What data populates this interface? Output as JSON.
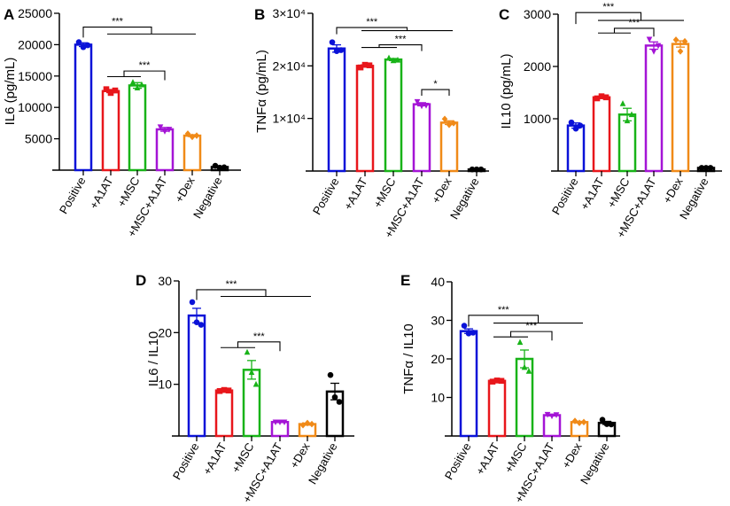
{
  "chart_data": [
    {
      "panel": "A",
      "type": "bar",
      "ylabel": "IL6 (pg/mL)",
      "ylim": [
        0,
        25000
      ],
      "yticks": [
        5000,
        10000,
        15000,
        20000,
        25000
      ],
      "ytick_labels": [
        "5000",
        "10000",
        "15000",
        "20000",
        "25000"
      ],
      "categories": [
        "Positive",
        "+A1AT",
        "+MSC",
        "+MSC+A1AT",
        "+Dex",
        "Negative"
      ],
      "values": [
        20000,
        12600,
        13500,
        6500,
        5500,
        500
      ],
      "sem": [
        300,
        250,
        450,
        300,
        150,
        80
      ],
      "points": [
        [
          20400,
          19600,
          19900
        ],
        [
          12900,
          12300,
          12700
        ],
        [
          14000,
          13100,
          13600
        ],
        [
          6900,
          6200,
          6500
        ],
        [
          5800,
          5300,
          5500
        ],
        [
          700,
          400,
          450
        ]
      ],
      "significance": [
        {
          "point": 0,
          "group": [
            1,
            4
          ],
          "y": 22800,
          "y2": 21700,
          "label": "***"
        },
        {
          "point": 3,
          "group": [
            1,
            2
          ],
          "y": 15800,
          "y2": 14900,
          "label": "***"
        }
      ]
    },
    {
      "panel": "B",
      "type": "bar",
      "ylabel": "TNFα (pg/mL)",
      "ylim": [
        0,
        30000
      ],
      "yticks": [
        10000,
        20000,
        30000
      ],
      "ytick_labels": [
        "1×10⁴",
        "2×10⁴",
        "3×10⁴"
      ],
      "categories": [
        "Positive",
        "+A1AT",
        "+MSC",
        "+MSC+A1AT",
        "+Dex",
        "Negative"
      ],
      "values": [
        23300,
        20000,
        21200,
        12700,
        9200,
        300
      ],
      "sem": [
        700,
        200,
        200,
        300,
        350,
        50
      ],
      "points": [
        [
          24500,
          22800,
          23000
        ],
        [
          19700,
          20200,
          20100
        ],
        [
          21500,
          21000,
          21100
        ],
        [
          13200,
          12400,
          12500
        ],
        [
          9900,
          8800,
          9100
        ],
        [
          300,
          300,
          300
        ]
      ],
      "significance": [
        {
          "point": 0,
          "group": [
            1,
            4
          ],
          "y": 27300,
          "y2": 26700,
          "label": "***"
        },
        {
          "point": 3,
          "group": [
            1,
            2
          ],
          "y": 24000,
          "y2": 23500,
          "label": "***"
        },
        {
          "point": 3,
          "group": [
            4,
            4
          ],
          "y": 15500,
          "y2": 15500,
          "label": "*"
        }
      ]
    },
    {
      "panel": "C",
      "type": "bar",
      "ylabel": "IL10 (pg/mL)",
      "ylim": [
        0,
        3000
      ],
      "yticks": [
        1000,
        2000,
        3000
      ],
      "ytick_labels": [
        "1000",
        "2000",
        "3000"
      ],
      "categories": [
        "Positive",
        "+A1AT",
        "+MSC",
        "+MSC+A1AT",
        "+Dex",
        "Negative"
      ],
      "values": [
        870,
        1410,
        1080,
        2400,
        2430,
        60
      ],
      "sem": [
        50,
        20,
        120,
        70,
        60,
        10
      ],
      "points": [
        [
          930,
          810,
          870
        ],
        [
          1390,
          1430,
          1410
        ],
        [
          1290,
          960,
          1080
        ],
        [
          2520,
          2290,
          2400
        ],
        [
          2510,
          2290,
          2480
        ],
        [
          60,
          60,
          60
        ]
      ],
      "significance": [
        {
          "point": 0,
          "group": [
            1,
            4
          ],
          "y": 3030,
          "y2": 2880,
          "label": "***"
        },
        {
          "point": 3,
          "group": [
            1,
            2
          ],
          "y": 2730,
          "y2": 2640,
          "label": "***"
        }
      ]
    },
    {
      "panel": "D",
      "type": "bar",
      "ylabel": "IL6 / IL10",
      "ylim": [
        0,
        30
      ],
      "yticks": [
        10,
        20,
        30
      ],
      "ytick_labels": [
        "10",
        "20",
        "30"
      ],
      "categories": [
        "Positive",
        "+A1AT",
        "+MSC",
        "+MSC+A1AT",
        "+Dex",
        "Negative"
      ],
      "values": [
        23.3,
        8.8,
        12.8,
        2.7,
        2.3,
        8.6
      ],
      "sem": [
        1.4,
        0.1,
        1.8,
        0.1,
        0.2,
        1.6
      ],
      "points": [
        [
          25.9,
          22.0,
          21.5
        ],
        [
          8.7,
          8.9,
          8.8
        ],
        [
          16.2,
          12.3,
          10.0
        ],
        [
          2.7,
          2.7,
          2.7
        ],
        [
          2.1,
          2.5,
          2.3
        ],
        [
          11.8,
          7.5,
          6.6
        ]
      ],
      "significance": [
        {
          "point": 0,
          "group": [
            1,
            4
          ],
          "y": 28.3,
          "y2": 27.0,
          "label": "***"
        },
        {
          "point": 3,
          "group": [
            1,
            2
          ],
          "y": 18.2,
          "y2": 17.1,
          "label": "***"
        }
      ]
    },
    {
      "panel": "E",
      "type": "bar",
      "ylabel": "TNFα / IL10",
      "ylim": [
        0,
        40
      ],
      "yticks": [
        10,
        20,
        30,
        40
      ],
      "ytick_labels": [
        "10",
        "20",
        "30",
        "40"
      ],
      "categories": [
        "Positive",
        "+A1AT",
        "+MSC",
        "+MSC+A1AT",
        "+Dex",
        "Negative"
      ],
      "values": [
        27.2,
        14.3,
        20.0,
        5.4,
        3.6,
        3.4
      ],
      "sem": [
        0.6,
        0.2,
        2.3,
        0.2,
        0.2,
        0.4
      ],
      "points": [
        [
          28.6,
          26.6,
          26.8
        ],
        [
          14.1,
          14.4,
          14.3
        ],
        [
          24.3,
          17.8,
          16.8
        ],
        [
          5.6,
          5.2,
          5.5
        ],
        [
          3.9,
          3.4,
          3.6
        ],
        [
          4.2,
          3.1,
          3.0
        ]
      ],
      "significance": [
        {
          "point": 0,
          "group": [
            1,
            4
          ],
          "y": 31.3,
          "y2": 29.3,
          "label": "***"
        },
        {
          "point": 3,
          "group": [
            1,
            2
          ],
          "y": 27.1,
          "y2": 25.7,
          "label": "***"
        }
      ]
    }
  ],
  "colors": [
    "#0a12d8",
    "#e8161b",
    "#18b318",
    "#a414d6",
    "#f08a18",
    "#000000"
  ],
  "markers": [
    "circle",
    "square",
    "triangle-up",
    "triangle-down",
    "diamond",
    "circle"
  ]
}
